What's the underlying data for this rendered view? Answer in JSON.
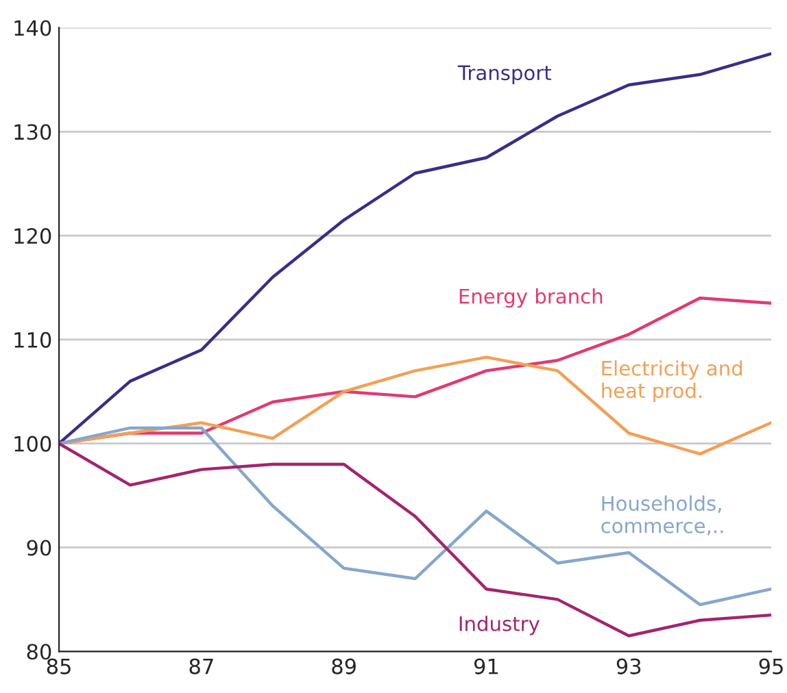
{
  "chart_data": {
    "type": "line",
    "x": [
      85,
      86,
      87,
      88,
      89,
      90,
      91,
      92,
      93,
      94,
      95
    ],
    "series": [
      {
        "name": "Transport",
        "color": "#3b2d86",
        "values": [
          100,
          106,
          109,
          116,
          121.5,
          126,
          127.5,
          131.5,
          134.5,
          135.5,
          137.5
        ]
      },
      {
        "name": "Energy branch",
        "color": "#e23a6e",
        "values": [
          100,
          101,
          101,
          104,
          105,
          104.5,
          107,
          108,
          110.5,
          114,
          113.5
        ]
      },
      {
        "name": "Electricity and\nheat prod.",
        "color": "#f2a055",
        "values": [
          100,
          101,
          102,
          100.5,
          105,
          107,
          108.3,
          107,
          101,
          99,
          102
        ]
      },
      {
        "name": "Households,\ncommerce,..",
        "color": "#86a6cc",
        "values": [
          100,
          101.5,
          101.5,
          94,
          88,
          87,
          93.5,
          88.5,
          89.5,
          84.5,
          86
        ]
      },
      {
        "name": "Industry",
        "color": "#a3246e",
        "values": [
          100,
          96,
          97.5,
          98,
          98,
          93,
          86,
          85,
          81.5,
          83,
          83.5
        ]
      }
    ],
    "xlim": [
      85,
      95
    ],
    "xticks": [
      85,
      87,
      89,
      91,
      93,
      95
    ],
    "ylim": [
      80,
      140
    ],
    "yticks": [
      80,
      90,
      100,
      110,
      120,
      130,
      140
    ],
    "grid": "y",
    "legend": false,
    "marker": "none",
    "line_style": "solid"
  }
}
